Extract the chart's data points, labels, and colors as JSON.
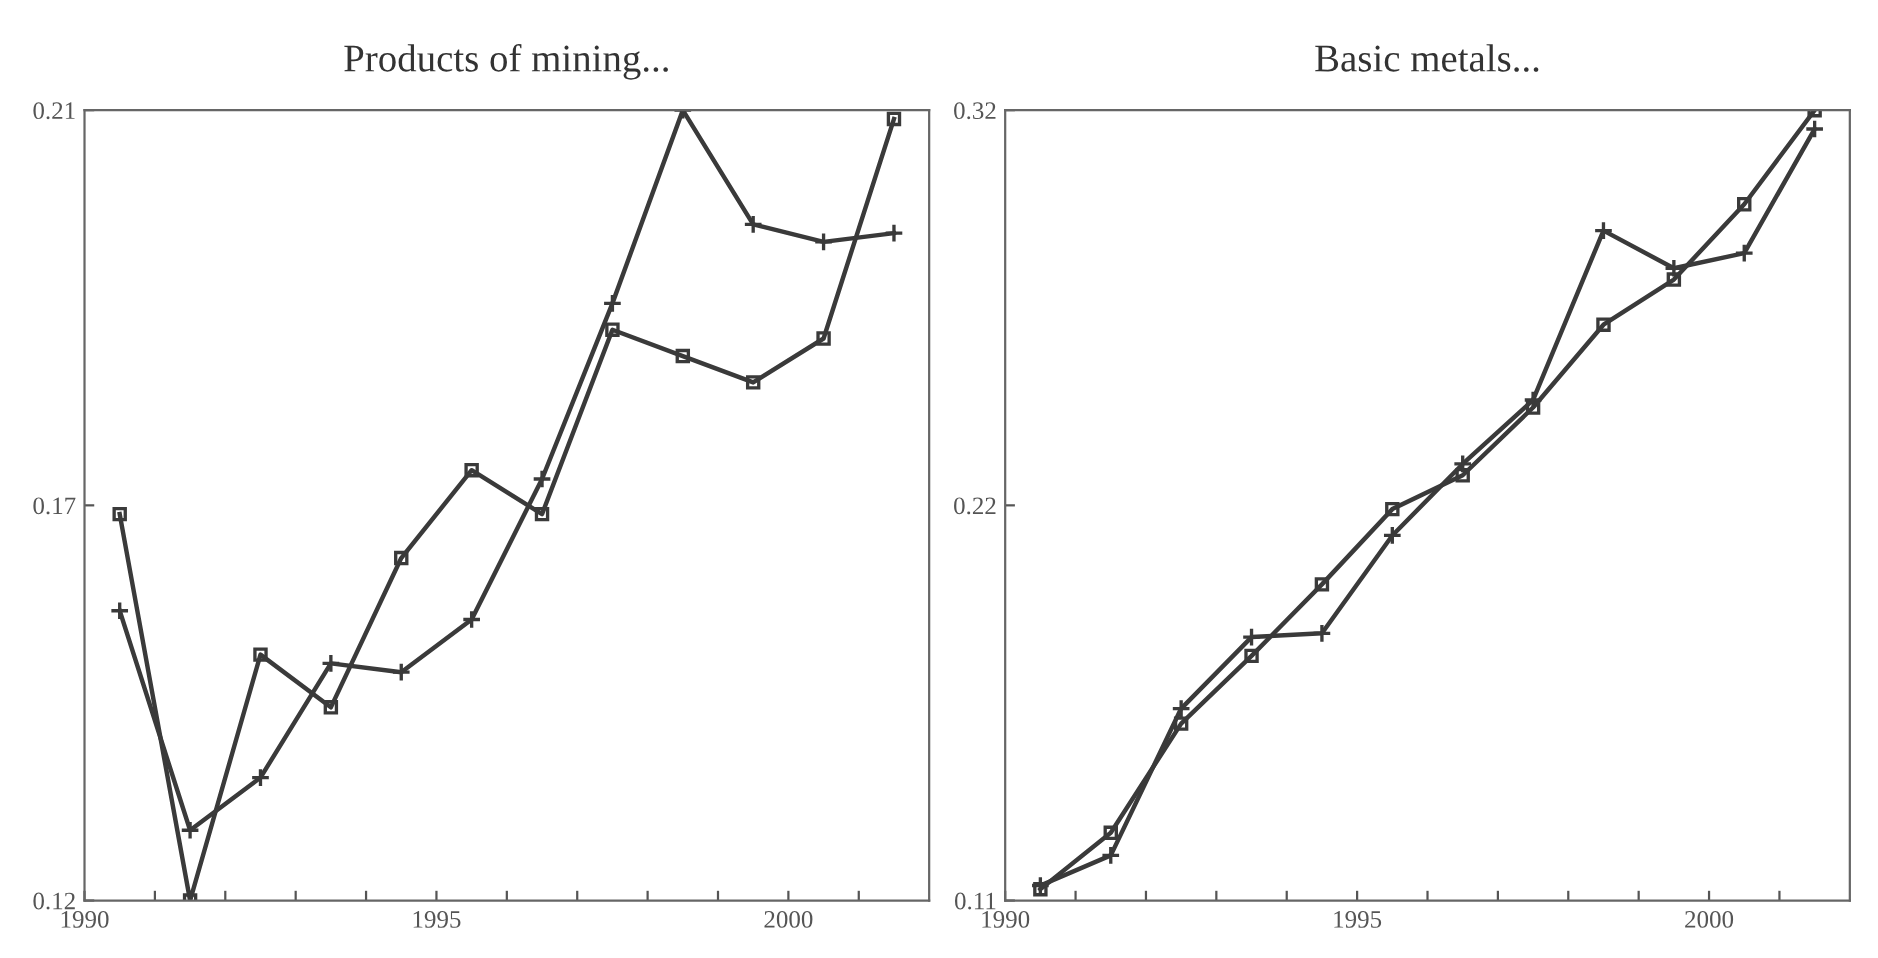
{
  "chart_data": [
    {
      "type": "line",
      "title": "Products of mining...",
      "x": [
        1990.5,
        1991.5,
        1992.5,
        1993.5,
        1994.5,
        1995.5,
        1996.5,
        1997.5,
        1998.5,
        1999.5,
        2000.5,
        2001.5
      ],
      "series": [
        {
          "color": "#3a3a3a",
          "marker": "square",
          "values": [
            0.164,
            0.12,
            0.148,
            0.142,
            0.159,
            0.169,
            0.164,
            0.185,
            0.182,
            0.179,
            0.184,
            0.209
          ]
        },
        {
          "color": "#3a3a3a",
          "marker": "cross",
          "values": [
            0.153,
            0.128,
            0.134,
            0.147,
            0.146,
            0.152,
            0.168,
            0.188,
            0.21,
            0.197,
            0.195,
            0.196
          ]
        }
      ],
      "xlim": [
        1990,
        2002
      ],
      "xticks": [
        1990,
        {
          "value": 1991,
          "label": null
        },
        {
          "value": 1992,
          "label": null
        },
        {
          "value": 1993,
          "label": null
        },
        {
          "value": 1994,
          "label": null
        },
        1995,
        {
          "value": 1996,
          "label": null
        },
        {
          "value": 1997,
          "label": null
        },
        {
          "value": 1998,
          "label": null
        },
        {
          "value": 1999,
          "label": null
        },
        2000,
        {
          "value": 2001,
          "label": null
        }
      ],
      "ylim": [
        0.12,
        0.21
      ],
      "yticks": [
        0.12,
        {
          "value": 0.165,
          "label": "0.17"
        },
        0.21
      ],
      "grid": false,
      "line_style": "solid"
    },
    {
      "type": "line",
      "title": "Basic metals...",
      "x": [
        1990.5,
        1991.5,
        1992.5,
        1993.5,
        1994.5,
        1995.5,
        1996.5,
        1997.5,
        1998.5,
        1999.5,
        2000.5,
        2001.5
      ],
      "series": [
        {
          "color": "#3a3a3a",
          "marker": "square",
          "values": [
            0.113,
            0.128,
            0.157,
            0.175,
            0.194,
            0.214,
            0.223,
            0.241,
            0.263,
            0.275,
            0.295,
            0.32
          ]
        },
        {
          "color": "#3a3a3a",
          "marker": "cross",
          "values": [
            0.114,
            0.122,
            0.161,
            0.18,
            0.181,
            0.207,
            0.226,
            0.243,
            0.288,
            0.278,
            0.282,
            0.315
          ]
        }
      ],
      "xlim": [
        1990,
        2002
      ],
      "xticks": [
        1990,
        {
          "value": 1991,
          "label": null
        },
        {
          "value": 1992,
          "label": null
        },
        {
          "value": 1993,
          "label": null
        },
        {
          "value": 1994,
          "label": null
        },
        1995,
        {
          "value": 1996,
          "label": null
        },
        {
          "value": 1997,
          "label": null
        },
        {
          "value": 1998,
          "label": null
        },
        {
          "value": 1999,
          "label": null
        },
        2000,
        {
          "value": 2001,
          "label": null
        }
      ],
      "ylim": [
        0.11,
        0.32
      ],
      "yticks": [
        0.11,
        {
          "value": 0.215,
          "label": "0.22"
        },
        0.32
      ],
      "grid": false,
      "line_style": "solid"
    }
  ]
}
